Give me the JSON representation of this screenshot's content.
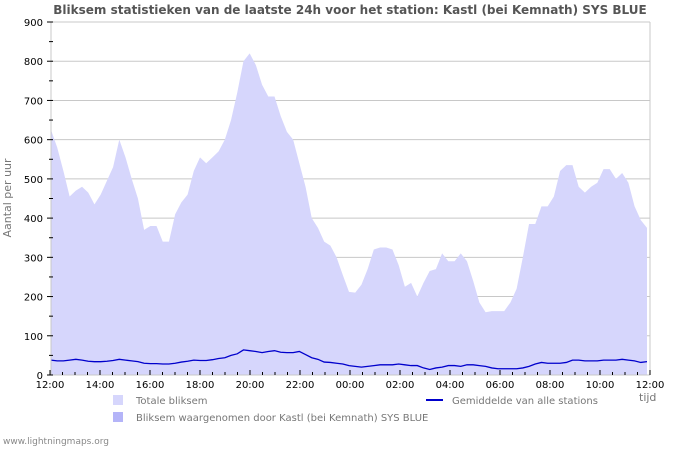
{
  "title": "Bliksem statistieken van de laatste 24h voor het station: Kastl (bei Kemnath) SYS BLUE",
  "footer": "www.lightningmaps.org",
  "colors": {
    "total_fill": "#d6d6fc",
    "station_fill": "#b4b4f8",
    "average_line": "#0000cc",
    "grid": "#c8c8c8"
  },
  "chart_data": {
    "type": "area",
    "title": "Bliksem statistieken van de laatste 24h voor het station: Kastl (bei Kemnath) SYS BLUE",
    "xlabel": "tijd",
    "ylabel": "Aantal per uur",
    "ylim": [
      0,
      900
    ],
    "yticks": [
      0,
      100,
      200,
      300,
      400,
      500,
      600,
      700,
      800,
      900
    ],
    "xticks": [
      "12:00",
      "14:00",
      "16:00",
      "18:00",
      "20:00",
      "22:00",
      "00:00",
      "02:00",
      "04:00",
      "06:00",
      "08:00",
      "10:00",
      "12:00"
    ],
    "grid": true,
    "legend_position": "bottom",
    "x_interval_minutes": 15,
    "x_start": "12:00",
    "series": [
      {
        "name": "Totale bliksem",
        "type": "area",
        "values": [
          625,
          580,
          520,
          455,
          470,
          480,
          465,
          435,
          460,
          495,
          530,
          600,
          555,
          500,
          450,
          370,
          380,
          380,
          340,
          340,
          410,
          440,
          460,
          520,
          555,
          540,
          555,
          570,
          600,
          650,
          720,
          800,
          820,
          790,
          740,
          710,
          710,
          660,
          620,
          600,
          540,
          480,
          400,
          375,
          340,
          330,
          300,
          255,
          212,
          210,
          230,
          270,
          320,
          325,
          325,
          320,
          280,
          225,
          235,
          200,
          235,
          265,
          270,
          310,
          290,
          290,
          310,
          290,
          240,
          185,
          160,
          163,
          163,
          163,
          185,
          220,
          300,
          385,
          385,
          430,
          430,
          455,
          520,
          535,
          535,
          480,
          465,
          480,
          490,
          525,
          525,
          500,
          515,
          490,
          430,
          395,
          375
        ]
      },
      {
        "name": "Bliksem waargenomen door Kastl (bei Kemnath) SYS BLUE",
        "type": "area",
        "values": [
          0,
          0,
          0,
          0,
          0,
          0,
          0,
          0,
          0,
          0,
          0,
          0,
          0,
          0,
          0,
          0,
          0,
          0,
          0,
          0,
          0,
          0,
          0,
          0,
          0,
          0,
          0,
          0,
          0,
          0,
          0,
          0,
          0,
          0,
          0,
          0,
          0,
          0,
          0,
          0,
          0,
          0,
          0,
          0,
          0,
          0,
          0,
          0,
          0,
          0,
          0,
          0,
          0,
          0,
          0,
          0,
          0,
          0,
          0,
          0,
          0,
          0,
          0,
          0,
          0,
          0,
          0,
          0,
          0,
          0,
          0,
          0,
          0,
          0,
          0,
          0,
          0,
          0,
          0,
          0,
          0,
          0,
          0,
          0,
          0,
          0,
          0,
          0,
          0,
          0,
          0,
          0,
          0,
          0,
          0,
          0,
          0
        ]
      },
      {
        "name": "Gemiddelde van alle stations",
        "type": "line",
        "values": [
          38,
          36,
          36,
          38,
          40,
          38,
          35,
          34,
          34,
          35,
          37,
          40,
          38,
          36,
          34,
          30,
          29,
          29,
          28,
          28,
          30,
          33,
          35,
          38,
          37,
          37,
          39,
          42,
          44,
          50,
          54,
          64,
          62,
          60,
          57,
          60,
          62,
          58,
          57,
          57,
          60,
          52,
          44,
          40,
          33,
          32,
          30,
          28,
          24,
          22,
          20,
          22,
          24,
          26,
          26,
          26,
          28,
          26,
          24,
          24,
          18,
          14,
          18,
          20,
          24,
          24,
          22,
          26,
          26,
          24,
          22,
          18,
          16,
          16,
          16,
          16,
          18,
          22,
          28,
          32,
          30,
          30,
          30,
          32,
          38,
          38,
          36,
          36,
          36,
          38,
          38,
          38,
          40,
          38,
          36,
          32,
          34
        ]
      }
    ]
  },
  "legend": {
    "total": "Totale bliksem",
    "station": "Bliksem waargenomen door Kastl (bei Kemnath) SYS BLUE",
    "average": "Gemiddelde van alle stations"
  }
}
